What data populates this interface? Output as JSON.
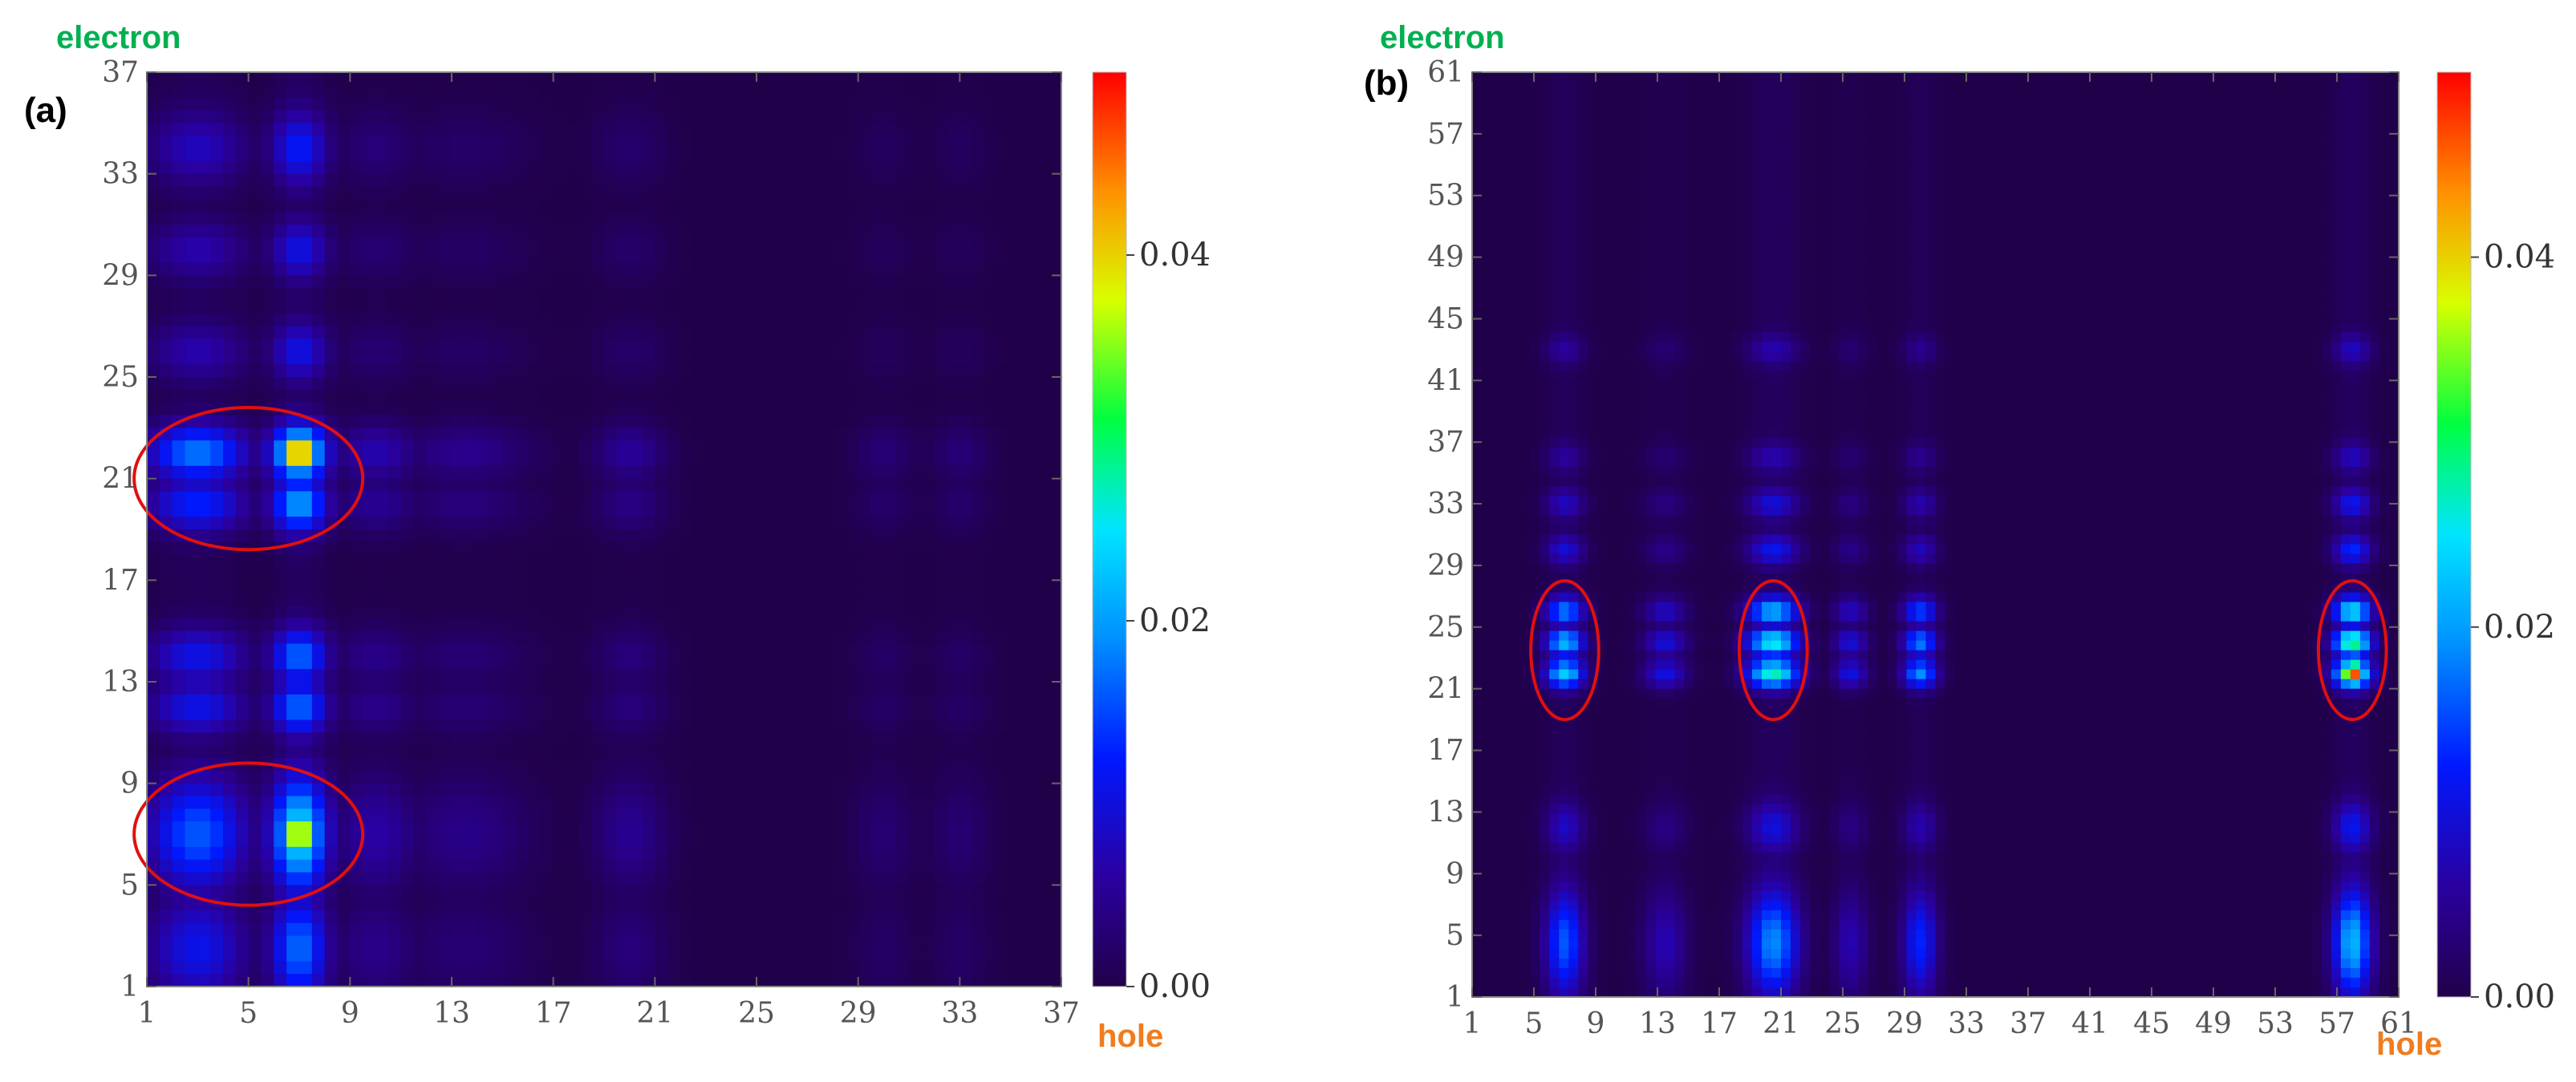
{
  "colors": {
    "electron_label": "#00b050",
    "hole_label": "#f07c1e",
    "background_map": "#21004a",
    "highlight_ellipse": "#e01010"
  },
  "chart_data": [
    {
      "type": "heatmap",
      "panel_label": "(a)",
      "xlabel": "hole",
      "ylabel": "electron",
      "xlim": [
        1,
        37
      ],
      "ylim": [
        1,
        37
      ],
      "x_ticks": [
        "1",
        "5",
        "9",
        "13",
        "17",
        "21",
        "25",
        "29",
        "33",
        "37"
      ],
      "y_ticks": [
        "1",
        "5",
        "9",
        "13",
        "17",
        "21",
        "25",
        "29",
        "33",
        "37"
      ],
      "x_tick_values": [
        1,
        5,
        9,
        13,
        17,
        21,
        25,
        29,
        33,
        37
      ],
      "y_tick_values": [
        1,
        5,
        9,
        13,
        17,
        21,
        25,
        29,
        33,
        37
      ],
      "colorbar": {
        "min": 0.0,
        "max": 0.05,
        "labels": [
          "0.00",
          "0.02",
          "0.04"
        ],
        "label_values": [
          0.0,
          0.02,
          0.04
        ]
      },
      "hot_columns": [
        {
          "x": 3,
          "w": 1.4,
          "a": 0.45
        },
        {
          "x": 7,
          "w": 0.8,
          "a": 0.7
        },
        {
          "x": 10,
          "w": 1.2,
          "a": 0.18
        },
        {
          "x": 13.5,
          "w": 1.8,
          "a": 0.12
        },
        {
          "x": 20,
          "w": 1.0,
          "a": 0.14
        },
        {
          "x": 30,
          "w": 0.8,
          "a": 0.08
        },
        {
          "x": 33,
          "w": 0.8,
          "a": 0.08
        }
      ],
      "hot_rows": [
        {
          "y": 2.5,
          "w": 1.5,
          "a": 0.5
        },
        {
          "y": 7,
          "w": 1.6,
          "a": 0.75
        },
        {
          "y": 12,
          "w": 0.8,
          "a": 0.5
        },
        {
          "y": 14,
          "w": 0.8,
          "a": 0.5
        },
        {
          "y": 20,
          "w": 0.8,
          "a": 0.6
        },
        {
          "y": 22,
          "w": 0.8,
          "a": 0.85
        },
        {
          "y": 26,
          "w": 0.8,
          "a": 0.3
        },
        {
          "y": 30,
          "w": 0.8,
          "a": 0.3
        },
        {
          "y": 34,
          "w": 1.0,
          "a": 0.35
        }
      ],
      "peaks": [
        {
          "x": 7,
          "y": 22,
          "v": 0.05
        },
        {
          "x": 7,
          "y": 7,
          "v": 0.045
        }
      ],
      "ellipses": [
        {
          "cx": 5,
          "cy": 21,
          "rx": 4.5,
          "ry": 2.8
        },
        {
          "cx": 5,
          "cy": 7,
          "rx": 4.5,
          "ry": 2.8
        }
      ]
    },
    {
      "type": "heatmap",
      "panel_label": "(b)",
      "xlabel": "hole",
      "ylabel": "electron",
      "xlim": [
        1,
        61
      ],
      "ylim": [
        1,
        61
      ],
      "x_ticks": [
        "1",
        "5",
        "9",
        "13",
        "17",
        "21",
        "25",
        "29",
        "33",
        "37",
        "41",
        "45",
        "49",
        "53",
        "57",
        "61"
      ],
      "y_ticks": [
        "1",
        "5",
        "9",
        "13",
        "17",
        "21",
        "25",
        "29",
        "33",
        "37",
        "41",
        "45",
        "49",
        "53",
        "57",
        "61"
      ],
      "x_tick_values": [
        1,
        5,
        9,
        13,
        17,
        21,
        25,
        29,
        33,
        37,
        41,
        45,
        49,
        53,
        57,
        61
      ],
      "y_tick_values": [
        1,
        5,
        9,
        13,
        17,
        21,
        25,
        29,
        33,
        37,
        41,
        45,
        49,
        53,
        57,
        61
      ],
      "colorbar": {
        "min": 0.0,
        "max": 0.05,
        "labels": [
          "0.00",
          "0.02",
          "0.04"
        ],
        "label_values": [
          0.0,
          0.02,
          0.04
        ]
      },
      "hot_columns": [
        {
          "x": 7,
          "w": 0.9,
          "a": 0.55
        },
        {
          "x": 13.5,
          "w": 1.0,
          "a": 0.25
        },
        {
          "x": 20.5,
          "w": 1.2,
          "a": 0.65
        },
        {
          "x": 25.5,
          "w": 0.8,
          "a": 0.25
        },
        {
          "x": 30,
          "w": 0.8,
          "a": 0.45
        },
        {
          "x": 58,
          "w": 0.9,
          "a": 0.75
        }
      ],
      "hot_rows": [
        {
          "y": 4.5,
          "w": 2.5,
          "a": 0.6
        },
        {
          "y": 12,
          "w": 1.2,
          "a": 0.3
        },
        {
          "y": 22,
          "w": 0.7,
          "a": 0.9
        },
        {
          "y": 24,
          "w": 0.7,
          "a": 0.85
        },
        {
          "y": 26,
          "w": 0.7,
          "a": 0.7
        },
        {
          "y": 30,
          "w": 0.7,
          "a": 0.35
        },
        {
          "y": 33,
          "w": 0.7,
          "a": 0.3
        },
        {
          "y": 36,
          "w": 0.7,
          "a": 0.2
        },
        {
          "y": 43,
          "w": 0.7,
          "a": 0.2
        }
      ],
      "peaks": [
        {
          "x": 58,
          "y": 22,
          "v": 0.05
        }
      ],
      "ellipses": [
        {
          "cx": 7,
          "cy": 23.5,
          "rx": 2.2,
          "ry": 4.5
        },
        {
          "cx": 20.5,
          "cy": 23.5,
          "rx": 2.2,
          "ry": 4.5
        },
        {
          "cx": 58,
          "cy": 23.5,
          "rx": 2.2,
          "ry": 4.5
        }
      ]
    }
  ]
}
